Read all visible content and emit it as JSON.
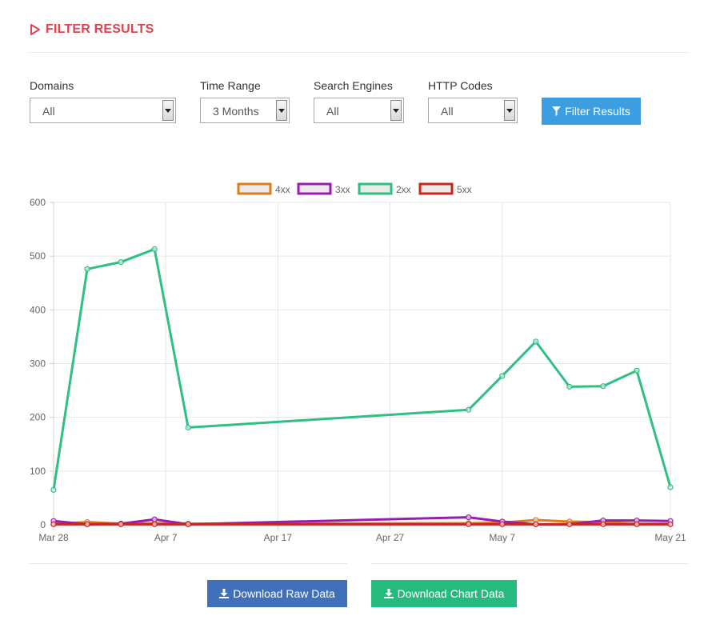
{
  "header": {
    "title": "FILTER RESULTS"
  },
  "filters": [
    {
      "label": "Domains",
      "value": "All"
    },
    {
      "label": "Time Range",
      "value": "3 Months"
    },
    {
      "label": "Search Engines",
      "value": "All"
    },
    {
      "label": "HTTP Codes",
      "value": "All"
    }
  ],
  "buttons": {
    "filter_label": "Filter Results",
    "download_raw_label": "Download Raw Data",
    "download_chart_label": "Download Chart Data"
  },
  "colors": {
    "accent": "#e2424e",
    "filter_button": "#3a9ee0",
    "raw_button": "#3f70b9",
    "chart_button": "#26bb7e"
  },
  "chart_data": {
    "type": "line",
    "x": [
      "2019-03-28",
      "2019-03-31",
      "2019-04-03",
      "2019-04-06",
      "2019-04-09",
      "2019-05-04",
      "2019-05-07",
      "2019-05-10",
      "2019-05-13",
      "2019-05-16",
      "2019-05-19",
      "2019-05-22"
    ],
    "x_tick_labels": [
      "Mar 28",
      "Apr 7",
      "Apr 17",
      "Apr 27",
      "May 7",
      "May 21"
    ],
    "ylim": [
      0,
      600
    ],
    "y_ticks": [
      0,
      100,
      200,
      300,
      400,
      500,
      600
    ],
    "grid": true,
    "legend_position": "top-center",
    "series": [
      {
        "name": "4xx",
        "color": "#e07b18",
        "values": [
          2,
          5,
          2,
          3,
          2,
          3,
          4,
          9,
          6,
          5,
          2,
          2
        ]
      },
      {
        "name": "3xx",
        "color": "#9a1db1",
        "values": [
          7,
          1,
          2,
          10,
          1,
          14,
          6,
          1,
          1,
          8,
          8,
          7
        ]
      },
      {
        "name": "2xx",
        "color": "#2ebf83",
        "values": [
          65,
          476,
          489,
          513,
          181,
          214,
          277,
          341,
          257,
          258,
          287,
          70
        ]
      },
      {
        "name": "5xx",
        "color": "#c8251f",
        "values": [
          1,
          1,
          1,
          1,
          1,
          1,
          1,
          1,
          1,
          1,
          1,
          1
        ]
      }
    ]
  }
}
